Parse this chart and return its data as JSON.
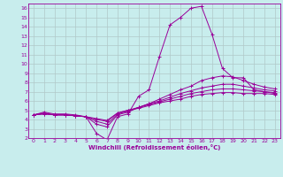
{
  "xlabel": "Windchill (Refroidissement éolien,°C)",
  "background_color": "#c8eded",
  "line_color": "#990099",
  "grid_color": "#b0c8c8",
  "xlim": [
    -0.5,
    23.5
  ],
  "ylim": [
    2,
    16.5
  ],
  "xticks": [
    0,
    1,
    2,
    3,
    4,
    5,
    6,
    7,
    8,
    9,
    10,
    11,
    12,
    13,
    14,
    15,
    16,
    17,
    18,
    19,
    20,
    21,
    22,
    23
  ],
  "yticks": [
    2,
    3,
    4,
    5,
    6,
    7,
    8,
    9,
    10,
    11,
    12,
    13,
    14,
    15,
    16
  ],
  "series": [
    [
      4.5,
      4.8,
      4.6,
      4.6,
      4.5,
      4.3,
      2.5,
      1.8,
      4.3,
      4.6,
      6.5,
      7.2,
      10.8,
      14.2,
      15.0,
      16.0,
      16.2,
      13.2,
      9.5,
      8.5,
      8.5,
      7.2,
      7.0,
      6.8
    ],
    [
      4.5,
      4.7,
      4.5,
      4.5,
      4.4,
      4.3,
      3.5,
      3.2,
      4.5,
      4.8,
      5.3,
      5.7,
      6.2,
      6.7,
      7.2,
      7.6,
      8.2,
      8.5,
      8.7,
      8.6,
      8.2,
      7.8,
      7.5,
      7.3
    ],
    [
      4.5,
      4.65,
      4.5,
      4.5,
      4.4,
      4.3,
      3.8,
      3.5,
      4.6,
      4.9,
      5.3,
      5.7,
      6.0,
      6.4,
      6.8,
      7.1,
      7.4,
      7.6,
      7.8,
      7.8,
      7.6,
      7.4,
      7.2,
      7.1
    ],
    [
      4.5,
      4.6,
      4.5,
      4.5,
      4.4,
      4.3,
      4.0,
      3.8,
      4.7,
      5.0,
      5.3,
      5.6,
      5.9,
      6.2,
      6.5,
      6.8,
      7.0,
      7.2,
      7.3,
      7.3,
      7.2,
      7.1,
      7.0,
      6.9
    ],
    [
      4.5,
      4.6,
      4.5,
      4.5,
      4.4,
      4.3,
      4.1,
      3.9,
      4.7,
      5.0,
      5.2,
      5.5,
      5.8,
      6.0,
      6.2,
      6.5,
      6.7,
      6.8,
      6.9,
      6.9,
      6.8,
      6.8,
      6.8,
      6.7
    ]
  ]
}
